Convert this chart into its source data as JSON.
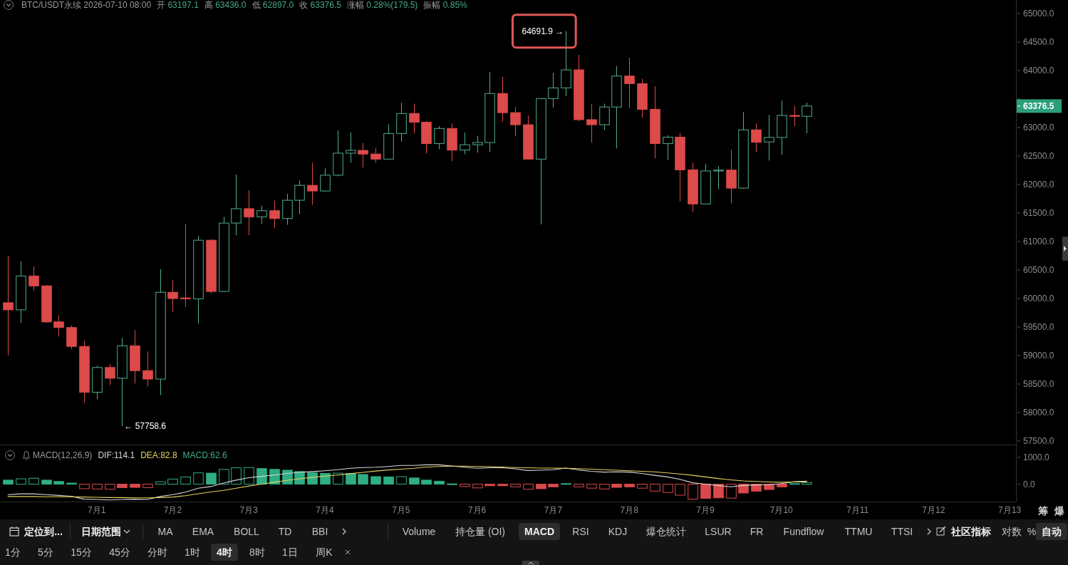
{
  "chart_data": [
    {
      "type": "candlestick",
      "title": "BTC/USDT永续 2026-07-10 08:00",
      "x": [
        "2026-06-29T20:00",
        "2026-06-30T00:00",
        "2026-06-30T04:00",
        "2026-06-30T08:00",
        "2026-06-30T12:00",
        "2026-06-30T16:00",
        "2026-06-30T20:00",
        "2026-07-01T00:00",
        "2026-07-01T04:00",
        "2026-07-01T08:00",
        "2026-07-01T12:00",
        "2026-07-01T16:00",
        "2026-07-01T20:00",
        "2026-07-02T00:00",
        "2026-07-02T04:00",
        "2026-07-02T08:00",
        "2026-07-02T12:00",
        "2026-07-02T16:00",
        "2026-07-02T20:00",
        "2026-07-03T00:00",
        "2026-07-03T04:00",
        "2026-07-03T08:00",
        "2026-07-03T12:00",
        "2026-07-03T16:00",
        "2026-07-03T20:00",
        "2026-07-04T00:00",
        "2026-07-04T04:00",
        "2026-07-04T08:00",
        "2026-07-04T12:00",
        "2026-07-04T16:00",
        "2026-07-04T20:00",
        "2026-07-05T00:00",
        "2026-07-05T04:00",
        "2026-07-05T08:00",
        "2026-07-05T12:00",
        "2026-07-05T16:00",
        "2026-07-05T20:00",
        "2026-07-06T00:00",
        "2026-07-06T04:00",
        "2026-07-06T08:00",
        "2026-07-06T12:00",
        "2026-07-06T16:00",
        "2026-07-06T20:00",
        "2026-07-07T00:00",
        "2026-07-07T04:00",
        "2026-07-07T08:00",
        "2026-07-07T12:00",
        "2026-07-07T16:00",
        "2026-07-07T20:00",
        "2026-07-08T00:00",
        "2026-07-08T04:00",
        "2026-07-08T08:00",
        "2026-07-08T12:00",
        "2026-07-08T16:00",
        "2026-07-08T20:00",
        "2026-07-09T00:00",
        "2026-07-09T04:00",
        "2026-07-09T08:00",
        "2026-07-09T12:00",
        "2026-07-09T16:00",
        "2026-07-09T20:00",
        "2026-07-10T00:00",
        "2026-07-10T04:00",
        "2026-07-10T08:00"
      ],
      "ohlc": [
        [
          59926,
          60751,
          59002,
          59802
        ],
        [
          59802,
          60652,
          59570,
          60395
        ],
        [
          60395,
          60563,
          60138,
          60222
        ],
        [
          60222,
          60237,
          59575,
          59590
        ],
        [
          59590,
          59704,
          59333,
          59491
        ],
        [
          59491,
          59531,
          59111,
          59160
        ],
        [
          59160,
          59259,
          58172,
          58355
        ],
        [
          58355,
          58824,
          58231,
          58790
        ],
        [
          58790,
          58854,
          58483,
          58602
        ],
        [
          58602,
          59308,
          57758.6,
          59170
        ],
        [
          59170,
          59447,
          58508,
          58735
        ],
        [
          58735,
          59071,
          58458,
          58587
        ],
        [
          58587,
          60514,
          58305,
          60109
        ],
        [
          60109,
          60321,
          59768,
          60000
        ],
        [
          60010,
          61309,
          59852,
          59995
        ],
        [
          59995,
          61097,
          59565,
          61023
        ],
        [
          61023,
          61040,
          60089,
          60124
        ],
        [
          60124,
          61433,
          60110,
          61324
        ],
        [
          61324,
          62174,
          61112,
          61576
        ],
        [
          61576,
          61897,
          61112,
          61433
        ],
        [
          61433,
          61630,
          61304,
          61541
        ],
        [
          61541,
          61720,
          61235,
          61403
        ],
        [
          61403,
          61838,
          61294,
          61724
        ],
        [
          61724,
          62070,
          61482,
          61986
        ],
        [
          61986,
          62382,
          61645,
          61887
        ],
        [
          61887,
          62283,
          61877,
          62164
        ],
        [
          62164,
          62950,
          62144,
          62550
        ],
        [
          62550,
          62915,
          62382,
          62599
        ],
        [
          62599,
          62727,
          62298,
          62535
        ],
        [
          62535,
          62643,
          62382,
          62446
        ],
        [
          62446,
          63059,
          62440,
          62895
        ],
        [
          62895,
          63434,
          62752,
          63246
        ],
        [
          63246,
          63419,
          62895,
          63093
        ],
        [
          63093,
          63113,
          62545,
          62718
        ],
        [
          62718,
          63024,
          62619,
          62984
        ],
        [
          62984,
          63073,
          62411,
          62604
        ],
        [
          62604,
          62915,
          62530,
          62698
        ],
        [
          62698,
          62856,
          62559,
          62737
        ],
        [
          62737,
          63973,
          62569,
          63597
        ],
        [
          63597,
          63889,
          63103,
          63261
        ],
        [
          63261,
          63360,
          62851,
          63049
        ],
        [
          63049,
          63212,
          62440,
          62446
        ],
        [
          62446,
          63518,
          61300,
          63508
        ],
        [
          63508,
          63963,
          63350,
          63696
        ],
        [
          63696,
          64691.9,
          63548,
          64012
        ],
        [
          64012,
          64274,
          63113,
          63138
        ],
        [
          63138,
          63409,
          62742,
          63049
        ],
        [
          63049,
          63419,
          62955,
          63360
        ],
        [
          63360,
          64076,
          62634,
          63903
        ],
        [
          63903,
          64225,
          63345,
          63770
        ],
        [
          63770,
          63854,
          63172,
          63320
        ],
        [
          63320,
          63726,
          62461,
          62718
        ],
        [
          62718,
          62866,
          62431,
          62831
        ],
        [
          62831,
          62905,
          61705,
          62258
        ],
        [
          62258,
          62382,
          61522,
          61660
        ],
        [
          61660,
          62362,
          61650,
          62238
        ],
        [
          62238,
          62322,
          61917,
          62253
        ],
        [
          62253,
          62609,
          61670,
          61937
        ],
        [
          61937,
          63271,
          61930,
          62960
        ],
        [
          62960,
          63073,
          62569,
          62742
        ],
        [
          62747,
          63221,
          62421,
          62826
        ],
        [
          62826,
          63474,
          62520,
          63212
        ],
        [
          63212,
          63380,
          63024,
          63197
        ],
        [
          63197.1,
          63436.0,
          62897.0,
          63376.5
        ]
      ],
      "colors": [
        "#dd4a4a",
        "#4fae8c",
        "#dd4a4a",
        "#dd4a4a",
        "#dd4a4a",
        "#dd4a4a",
        "#dd4a4a",
        "#4fae8c",
        "#dd4a4a",
        "#4fae8c",
        "#dd4a4a",
        "#dd4a4a",
        "#4fae8c",
        "#dd4a4a",
        "#dd4a4a",
        "#4fae8c",
        "#dd4a4a",
        "#4fae8c",
        "#4fae8c",
        "#dd4a4a",
        "#4fae8c",
        "#dd4a4a",
        "#4fae8c",
        "#4fae8c",
        "#dd4a4a",
        "#4fae8c",
        "#4fae8c",
        "#4fae8c",
        "#dd4a4a",
        "#dd4a4a",
        "#4fae8c",
        "#4fae8c",
        "#dd4a4a",
        "#dd4a4a",
        "#4fae8c",
        "#dd4a4a",
        "#4fae8c",
        "#4fae8c",
        "#4fae8c",
        "#dd4a4a",
        "#dd4a4a",
        "#dd4a4a",
        "#4fae8c",
        "#4fae8c",
        "#4fae8c",
        "#dd4a4a",
        "#dd4a4a",
        "#4fae8c",
        "#4fae8c",
        "#dd4a4a",
        "#dd4a4a",
        "#dd4a4a",
        "#4fae8c",
        "#dd4a4a",
        "#dd4a4a",
        "#4fae8c",
        "#4fae8c",
        "#dd4a4a",
        "#4fae8c",
        "#dd4a4a",
        "#4fae8c",
        "#4fae8c",
        "#dd4a4a",
        "#4fae8c"
      ],
      "xlim": [
        "2026-06-29T17:30",
        "2026-07-13T02:00"
      ],
      "ylim": [
        57437.5,
        65237.5
      ],
      "yticks": [
        {
          "value": 57500,
          "label": "57500.0"
        },
        {
          "value": 58000,
          "label": "58000.0"
        },
        {
          "value": 58500,
          "label": "58500.0"
        },
        {
          "value": 59000,
          "label": "59000.0"
        },
        {
          "value": 59500,
          "label": "59500.0"
        },
        {
          "value": 60000,
          "label": "60000.0"
        },
        {
          "value": 60500,
          "label": "60500.0"
        },
        {
          "value": 61000,
          "label": "61000.0"
        },
        {
          "value": 61500,
          "label": "61500.0"
        },
        {
          "value": 62000,
          "label": "62000.0"
        },
        {
          "value": 62500,
          "label": "62500.0"
        },
        {
          "value": 63000,
          "label": "63000.0"
        },
        {
          "value": 63500,
          "label": null
        },
        {
          "value": 64000,
          "label": "64000.0"
        },
        {
          "value": 64500,
          "label": "64500.0"
        },
        {
          "value": 65000,
          "label": "65000.0"
        }
      ],
      "tick_labels": "y",
      "annotations": [
        "开 63197.1",
        "高 63436.0",
        "低 62897.0",
        "收 63376.5",
        "涨幅 0.28%(179.5)",
        "振幅 0.85%",
        {
          "text": "64691.9 →",
          "x": "2026-07-07T04:00",
          "y": 64691.9
        },
        {
          "text": "← 57758.6",
          "x": "2026-07-01T08:00",
          "y": 57758.6
        },
        "63376.5"
      ]
    },
    {
      "type": "bar",
      "title": "MACD(12,26,9)",
      "x": [
        "2026-06-29T20:00",
        "2026-06-30T00:00",
        "2026-06-30T04:00",
        "2026-06-30T08:00",
        "2026-06-30T12:00",
        "2026-06-30T16:00",
        "2026-06-30T20:00",
        "2026-07-01T00:00",
        "2026-07-01T04:00",
        "2026-07-01T08:00",
        "2026-07-01T12:00",
        "2026-07-01T16:00",
        "2026-07-01T20:00",
        "2026-07-02T00:00",
        "2026-07-02T04:00",
        "2026-07-02T08:00",
        "2026-07-02T12:00",
        "2026-07-02T16:00",
        "2026-07-02T20:00",
        "2026-07-03T00:00",
        "2026-07-03T04:00",
        "2026-07-03T08:00",
        "2026-07-03T12:00",
        "2026-07-03T16:00",
        "2026-07-03T20:00",
        "2026-07-04T00:00",
        "2026-07-04T04:00",
        "2026-07-04T08:00",
        "2026-07-04T12:00",
        "2026-07-04T16:00",
        "2026-07-04T20:00",
        "2026-07-05T00:00",
        "2026-07-05T04:00",
        "2026-07-05T08:00",
        "2026-07-05T12:00",
        "2026-07-05T16:00",
        "2026-07-05T20:00",
        "2026-07-06T00:00",
        "2026-07-06T04:00",
        "2026-07-06T08:00",
        "2026-07-06T12:00",
        "2026-07-06T16:00",
        "2026-07-06T20:00",
        "2026-07-07T00:00",
        "2026-07-07T04:00",
        "2026-07-07T08:00",
        "2026-07-07T12:00",
        "2026-07-07T16:00",
        "2026-07-07T20:00",
        "2026-07-08T00:00",
        "2026-07-08T04:00",
        "2026-07-08T08:00",
        "2026-07-08T12:00",
        "2026-07-08T16:00",
        "2026-07-08T20:00",
        "2026-07-09T00:00",
        "2026-07-09T04:00",
        "2026-07-09T08:00",
        "2026-07-09T12:00",
        "2026-07-09T16:00",
        "2026-07-09T20:00",
        "2026-07-10T00:00",
        "2026-07-10T04:00",
        "2026-07-10T08:00"
      ],
      "series": [
        {
          "name": "DIF:114.1",
          "type": "line",
          "color": "#d6d6d6",
          "values": [
            -390,
            -360,
            -360,
            -390,
            -420,
            -450,
            -560,
            -570,
            -590,
            -570,
            -560,
            -570,
            -460,
            -390,
            -300,
            -150,
            -90,
            40,
            150,
            240,
            290,
            340,
            400,
            440,
            470,
            500,
            540,
            590,
            620,
            630,
            660,
            700,
            700,
            720,
            720,
            680,
            630,
            590,
            610,
            610,
            570,
            510,
            520,
            540,
            600,
            530,
            480,
            450,
            460,
            450,
            400,
            330,
            270,
            180,
            50,
            0,
            -50,
            -100,
            -50,
            -30,
            -20,
            20,
            90,
            114.1
          ]
        },
        {
          "name": "DEA:82.8",
          "type": "line",
          "color": "#e3d35f",
          "values": [
            -460,
            -460,
            -460,
            -470,
            -470,
            -470,
            -480,
            -490,
            -500,
            -500,
            -510,
            -510,
            -500,
            -480,
            -430,
            -360,
            -290,
            -230,
            -150,
            -70,
            0,
            70,
            140,
            200,
            250,
            300,
            340,
            390,
            440,
            490,
            530,
            560,
            590,
            640,
            660,
            670,
            670,
            660,
            650,
            640,
            620,
            610,
            600,
            600,
            590,
            580,
            560,
            540,
            520,
            500,
            480,
            460,
            420,
            380,
            330,
            270,
            210,
            160,
            120,
            100,
            80,
            70,
            80,
            82.8
          ]
        },
        {
          "name": "MACD:62.6",
          "type": "bar",
          "color": "#3fae8a",
          "colors": [
            "#2fae84",
            "#2fae84",
            "#2fae84",
            "#2fae84",
            "#2fae84",
            "#2fae84",
            "#d9484b",
            "#d9484b",
            "#d9484b",
            "#d9484b",
            "#d9484b",
            "#d9484b",
            "#2fae84",
            "#2fae84",
            "#2fae84",
            "#2fae84",
            "#2fae84",
            "#2fae84",
            "#2fae84",
            "#2fae84",
            "#2fae84",
            "#2fae84",
            "#2fae84",
            "#2fae84",
            "#2fae84",
            "#2fae84",
            "#2fae84",
            "#2fae84",
            "#2fae84",
            "#2fae84",
            "#2fae84",
            "#2fae84",
            "#2fae84",
            "#2fae84",
            "#2fae84",
            "#2fae84",
            "#d9484b",
            "#d9484b",
            "#d9484b",
            "#d9484b",
            "#d9484b",
            "#d9484b",
            "#d9484b",
            "#d9484b",
            "#2fae84",
            "#d9484b",
            "#d9484b",
            "#d9484b",
            "#d9484b",
            "#d9484b",
            "#d9484b",
            "#d9484b",
            "#d9484b",
            "#d9484b",
            "#d9484b",
            "#d9484b",
            "#d9484b",
            "#d9484b",
            "#d9484b",
            "#d9484b",
            "#d9484b",
            "#d9484b",
            "#2fae84",
            "#2fae84"
          ],
          "values": [
            150,
            200,
            220,
            150,
            100,
            40,
            -170,
            -180,
            -190,
            -130,
            -120,
            -130,
            90,
            190,
            270,
            420,
            410,
            550,
            610,
            620,
            580,
            550,
            520,
            470,
            430,
            400,
            410,
            400,
            360,
            280,
            270,
            280,
            230,
            150,
            110,
            10,
            -90,
            -140,
            -60,
            -60,
            -100,
            -190,
            -170,
            -100,
            20,
            -100,
            -150,
            -180,
            -120,
            -100,
            -150,
            -260,
            -310,
            -410,
            -560,
            -530,
            -510,
            -520,
            -330,
            -260,
            -200,
            -100,
            20,
            62.6
          ]
        }
      ],
      "xlim": [
        "2026-06-29T17:30",
        "2026-07-13T02:00"
      ],
      "ylim": [
        -650,
        1475
      ],
      "xticks": [
        {
          "value": "2026-07-01",
          "label": "7月1"
        },
        {
          "value": "2026-07-02",
          "label": "7月2"
        },
        {
          "value": "2026-07-03",
          "label": "7月3"
        },
        {
          "value": "2026-07-04",
          "label": "7月4"
        },
        {
          "value": "2026-07-05",
          "label": "7月5"
        },
        {
          "value": "2026-07-06",
          "label": "7月6"
        },
        {
          "value": "2026-07-07",
          "label": "7月7"
        },
        {
          "value": "2026-07-08",
          "label": "7月8"
        },
        {
          "value": "2026-07-09",
          "label": "7月9"
        },
        {
          "value": "2026-07-10",
          "label": "7月10"
        },
        {
          "value": "2026-07-11",
          "label": "7月11"
        },
        {
          "value": "2026-07-12",
          "label": "7月12"
        },
        {
          "value": "2026-07-13",
          "label": "7月13"
        }
      ],
      "yticks": [
        {
          "value": 0,
          "label": "0.0"
        },
        {
          "value": 1000,
          "label": "1000.0"
        }
      ],
      "legend": "top left",
      "annotations": [
        "筹",
        "爆"
      ]
    },
    {
      "type": "other",
      "annotations": [
        "定位到...",
        "日期范围",
        "MA",
        "EMA",
        "BOLL",
        "TD",
        "BBI",
        "Volume",
        "持仓量 (OI)",
        "MACD",
        "RSI",
        "KDJ",
        "爆仓统计",
        "LSUR",
        "FR",
        "Fundflow",
        "TTMU",
        "TTSI",
        "社区指标",
        "对数",
        "%",
        "自动"
      ]
    },
    {
      "type": "other",
      "annotations": [
        "1分",
        "5分",
        "15分",
        "45分",
        "分时",
        "1时",
        "4时",
        "8时",
        "1日",
        "周K"
      ]
    }
  ]
}
